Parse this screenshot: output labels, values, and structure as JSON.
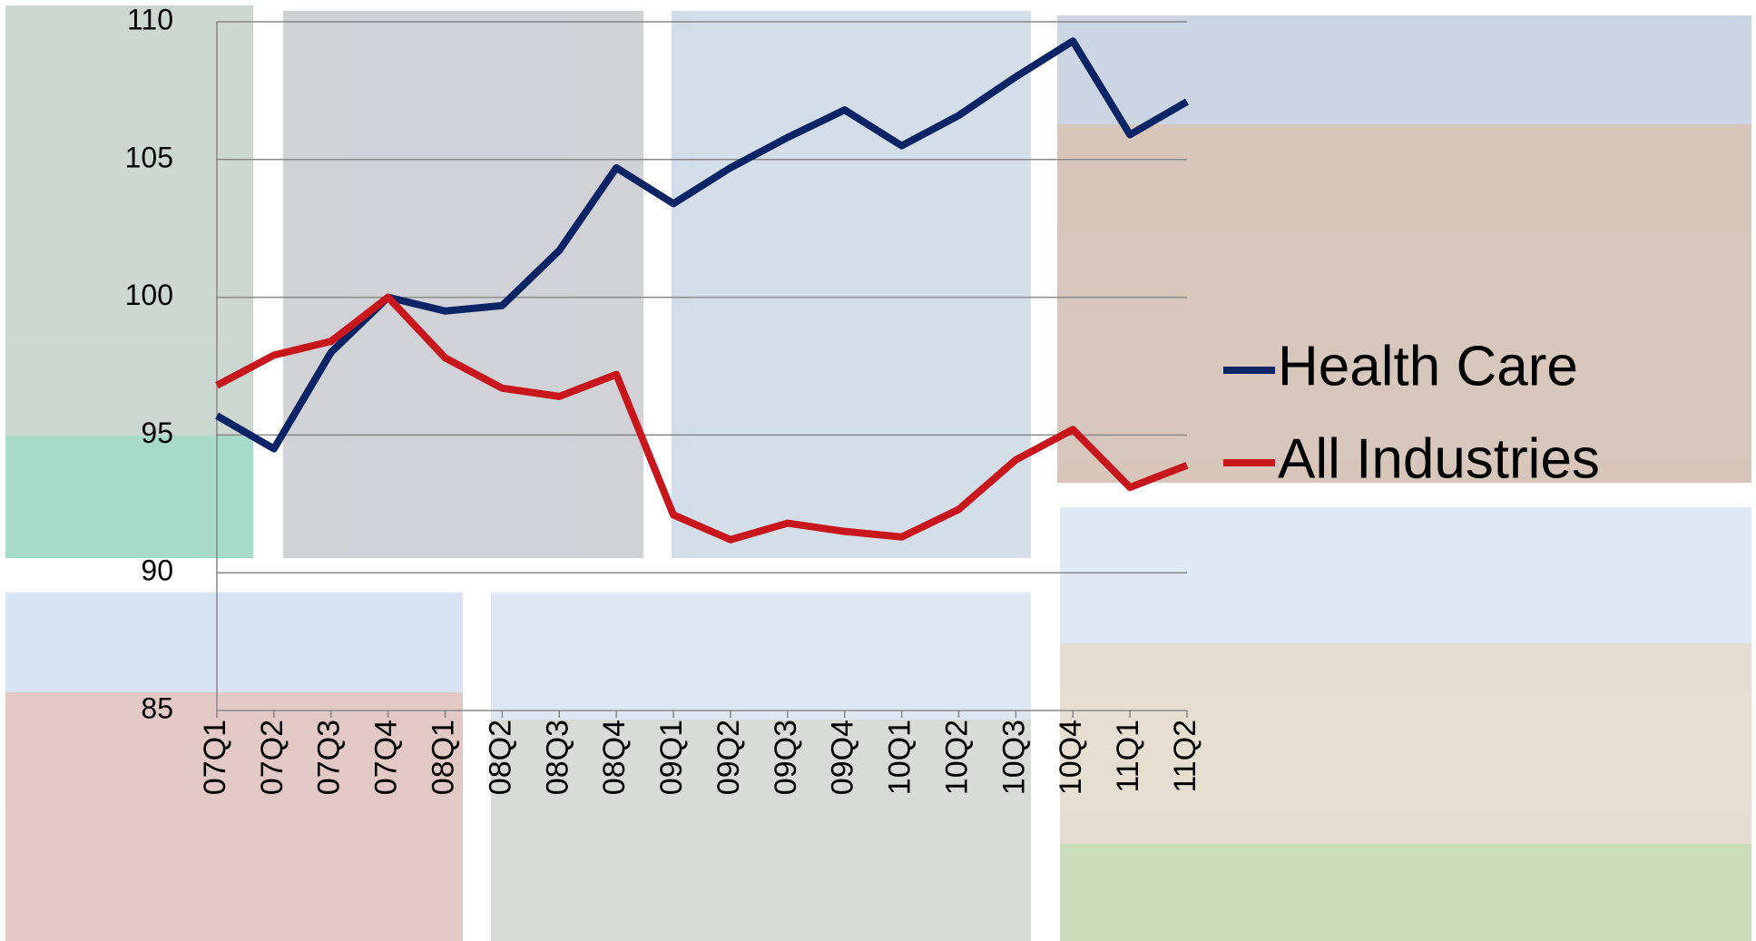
{
  "chart_data": {
    "type": "line",
    "categories": [
      "07Q1",
      "07Q2",
      "07Q3",
      "07Q4",
      "08Q1",
      "08Q2",
      "08Q3",
      "08Q4",
      "09Q1",
      "09Q2",
      "09Q3",
      "09Q4",
      "10Q1",
      "10Q2",
      "10Q3",
      "10Q4",
      "11Q1",
      "11Q2"
    ],
    "series": [
      {
        "name": "Health Care",
        "color": "#0b2466",
        "values": [
          95.7,
          94.5,
          98.0,
          100,
          99.5,
          99.7,
          101.7,
          104.7,
          103.4,
          104.7,
          105.8,
          106.8,
          105.5,
          106.6,
          108.0,
          109.3,
          105.9,
          107.1
        ]
      },
      {
        "name": "All Industries",
        "color": "#c8171c",
        "values": [
          96.8,
          97.9,
          98.4,
          100,
          97.8,
          96.7,
          96.4,
          97.2,
          92.1,
          91.2,
          91.8,
          91.5,
          91.3,
          92.3,
          94.1,
          95.2,
          93.1,
          93.9
        ]
      }
    ],
    "ylim": [
      85,
      110
    ],
    "yticks": [
      85,
      90,
      95,
      100,
      105,
      110
    ],
    "grid": true,
    "legend": "right"
  }
}
